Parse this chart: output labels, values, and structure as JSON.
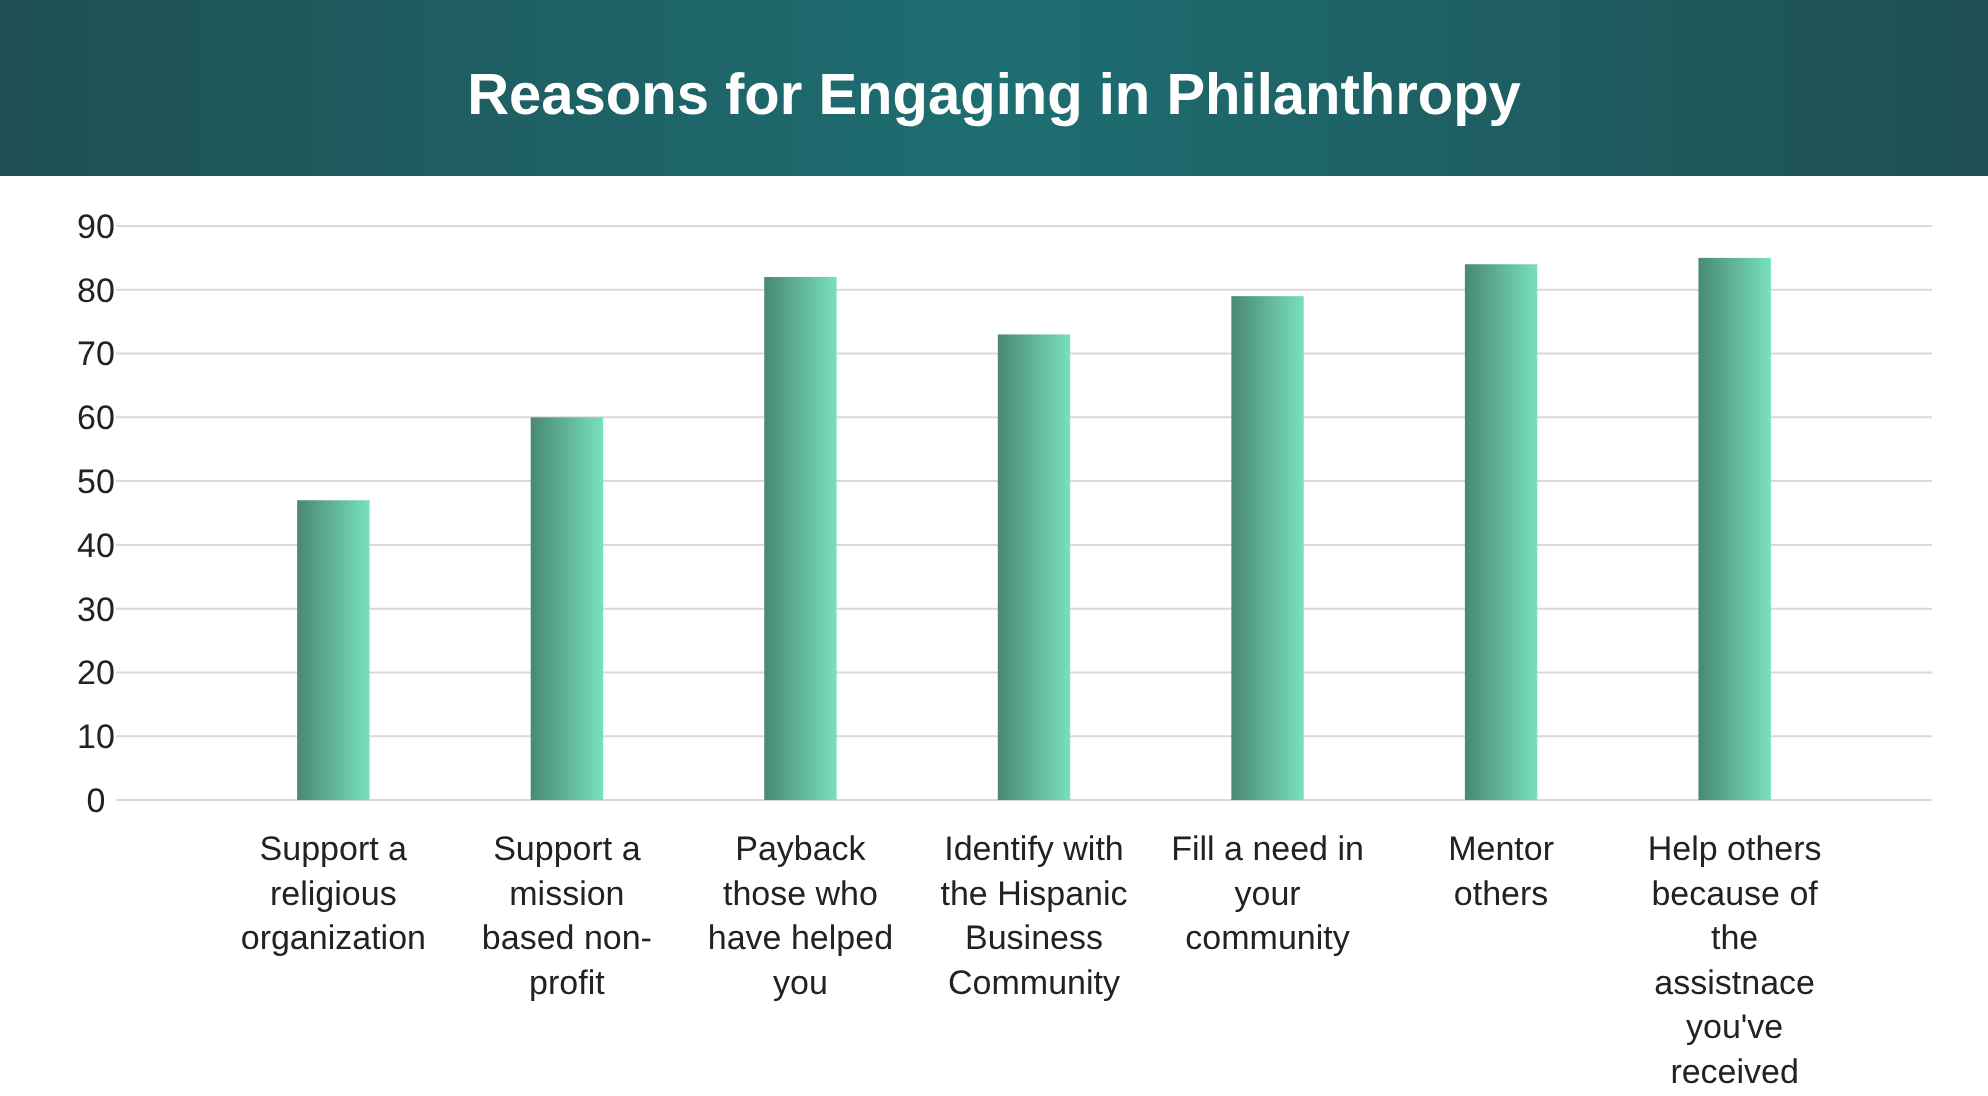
{
  "chart_data": {
    "type": "bar",
    "title": "Reasons for Engaging in Philanthropy",
    "categories": [
      "Support a religious organization",
      "Support a mission based non-profit",
      "Payback those who have helped you",
      "Identify with the Hispanic Business Community",
      "Fill a need in your community",
      "Mentor others",
      "Help others because of the assistnace you've received"
    ],
    "values": [
      47,
      60,
      82,
      73,
      79,
      84,
      85
    ],
    "color": "#6cc9ac",
    "ylim": [
      0,
      90
    ],
    "yticks": [
      0,
      10,
      20,
      30,
      40,
      50,
      60,
      70,
      80,
      90
    ],
    "grid": "y"
  }
}
